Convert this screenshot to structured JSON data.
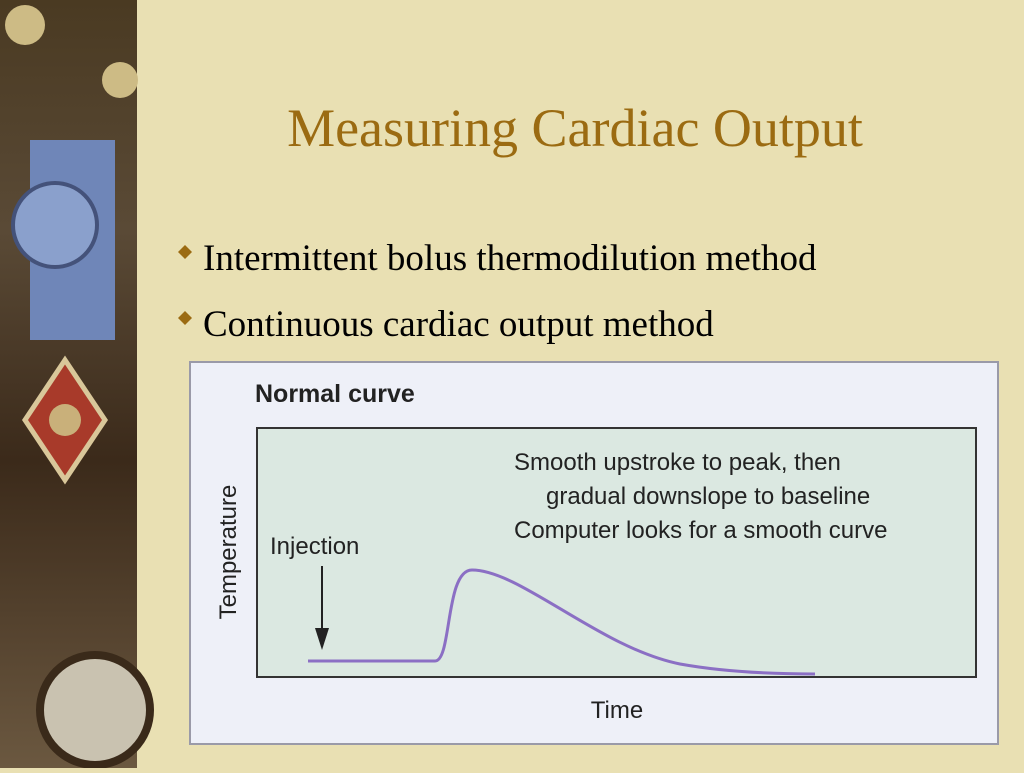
{
  "title": "Measuring Cardiac Output",
  "bullets": [
    "Intermittent bolus thermodilution method",
    "Continuous cardiac output method"
  ],
  "figure": {
    "title": "Normal curve",
    "y_label": "Temperature",
    "x_label": "Time",
    "injection_label": "Injection",
    "notes": [
      "Smooth upstroke to peak, then",
      "gradual downslope to baseline",
      "Computer looks for a smooth curve"
    ]
  }
}
